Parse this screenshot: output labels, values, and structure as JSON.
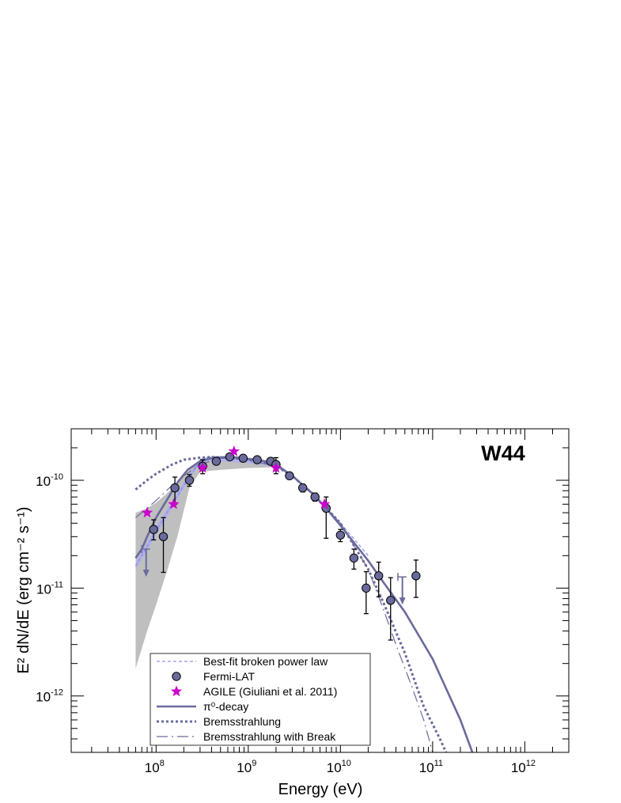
{
  "chart_data": {
    "type": "scatter",
    "title": "W44",
    "xlabel": "Energy (eV)",
    "ylabel": "E² dN/dE (erg cm⁻² s⁻¹)",
    "xscale": "log",
    "yscale": "log",
    "xlim": [
      12000000.0,
      3000000000000.0
    ],
    "ylim": [
      3e-13,
      3e-10
    ],
    "x_ticks": [
      {
        "value": 100000000.0,
        "base": "10",
        "exp": "8"
      },
      {
        "value": 1000000000.0,
        "base": "10",
        "exp": "9"
      },
      {
        "value": 10000000000.0,
        "base": "10",
        "exp": "10"
      },
      {
        "value": 100000000000.0,
        "base": "10",
        "exp": "11"
      },
      {
        "value": 1000000000000.0,
        "base": "10",
        "exp": "12"
      }
    ],
    "y_ticks": [
      {
        "value": 1e-10,
        "base": "10",
        "exp": "-10"
      },
      {
        "value": 1e-11,
        "base": "10",
        "exp": "-11"
      },
      {
        "value": 1e-12,
        "base": "10",
        "exp": "-12"
      }
    ],
    "legend_position": "bottom-left",
    "colors": {
      "fermi": "#6a6a9c",
      "agile": "#cc00cc",
      "model": "#6a6a9c",
      "bpl": "#8f8fef",
      "band": "#b4b4b4",
      "bpl_band": "#aaaaf5"
    },
    "series": [
      {
        "name": "Best-fit broken power law",
        "kind": "line",
        "x": [
          60000000.0,
          100000000.0,
          200000000.0,
          300000000.0,
          400000000.0,
          700000000.0,
          1200000000.0,
          2000000000.0,
          3000000000.0,
          5000000000.0,
          10000000000.0,
          20000000000.0
        ],
        "y": [
          1.6e-11,
          3.4e-11,
          9e-11,
          1.5e-10,
          1.6e-10,
          1.58e-10,
          1.52e-10,
          1.4e-10,
          1.1e-10,
          7.5e-11,
          4e-11,
          2e-11
        ],
        "band_lower": [
          1.5e-11,
          3.1e-11,
          8.5e-11,
          1.45e-10,
          1.5e-10,
          1.48e-10,
          1.42e-10,
          1.33e-10
        ],
        "band_upper": [
          1.7e-11,
          3.7e-11,
          9.6e-11,
          1.58e-10,
          1.68e-10,
          1.66e-10,
          1.6e-10,
          1.48e-10
        ]
      },
      {
        "name": "Fermi-LAT",
        "kind": "points",
        "x": [
          94000000.0,
          120000000.0,
          160000000.0,
          230000000.0,
          320000000.0,
          450000000.0,
          630000000.0,
          880000000.0,
          1250000000.0,
          1750000000.0,
          2000000000.0,
          2800000000.0,
          3900000000.0,
          5300000000.0,
          7000000000.0,
          10000000000.0,
          14000000000.0,
          19000000000.0,
          26000000000.0,
          35000000000.0,
          66000000000.0
        ],
        "y": [
          3.5e-11,
          3e-11,
          8.5e-11,
          1e-10,
          1.35e-10,
          1.5e-10,
          1.65e-10,
          1.6e-10,
          1.55e-10,
          1.5e-10,
          1.4e-10,
          1.1e-10,
          8.5e-11,
          7e-11,
          5.5e-11,
          3.1e-11,
          1.9e-11,
          1e-11,
          1.3e-11,
          7.7e-12,
          1.3e-11
        ],
        "y_low": [
          2.8e-11,
          1.4e-11,
          6e-11,
          8.8e-11,
          1.15e-10,
          1.4e-10,
          1.55e-10,
          1.52e-10,
          1.48e-10,
          1.42e-10,
          1.15e-10,
          1.02e-10,
          7.8e-11,
          6.4e-11,
          2.9e-11,
          2.7e-11,
          1.5e-11,
          5.8e-12,
          8.3e-12,
          3.3e-12,
          8.2e-12
        ],
        "y_high": [
          4.3e-11,
          4.5e-11,
          1.07e-10,
          1.13e-10,
          1.55e-10,
          1.6e-10,
          1.75e-10,
          1.68e-10,
          1.62e-10,
          1.58e-10,
          1.62e-10,
          1.18e-10,
          9.2e-11,
          7.6e-11,
          7e-11,
          3.5e-11,
          2.3e-11,
          1.42e-11,
          1.74e-11,
          1.25e-11,
          1.82e-11
        ]
      },
      {
        "name": "AGILE (Giuliani et al. 2011)",
        "kind": "stars",
        "x": [
          80000000.0,
          155000000.0,
          320000000.0,
          700000000.0,
          2000000000.0,
          6700000000.0
        ],
        "y": [
          5e-11,
          6e-11,
          1.3e-10,
          1.85e-10,
          1.3e-10,
          6e-11
        ]
      },
      {
        "name": "π⁰-decay",
        "kind": "line",
        "x": [
          60000000.0,
          70000000.0,
          80000000.0,
          100000000.0,
          130000000.0,
          170000000.0,
          220000000.0,
          300000000.0,
          400000000.0,
          600000000.0,
          800000000.0,
          1000000000.0,
          1500000000.0,
          2000000000.0,
          3000000000.0,
          5000000000.0,
          7000000000.0,
          10000000000.0,
          20000000000.0,
          30000000000.0,
          50000000000.0,
          100000000000.0,
          200000000000.0,
          270000000000.0
        ],
        "y": [
          1.9e-11,
          2.3e-11,
          3e-11,
          4.5e-11,
          6.5e-11,
          9.5e-11,
          1.25e-10,
          1.5e-10,
          1.6e-10,
          1.65e-10,
          1.62e-10,
          1.58e-10,
          1.5e-10,
          1.4e-10,
          1.1e-10,
          7.5e-11,
          5.5e-11,
          3.8e-11,
          1.8e-11,
          1.1e-11,
          6e-12,
          2.2e-12,
          6e-13,
          3e-13
        ]
      },
      {
        "name": "Bremsstrahlung",
        "kind": "line",
        "x": [
          60000000.0,
          80000000.0,
          100000000.0,
          150000000.0,
          200000000.0,
          300000000.0,
          400000000.0,
          600000000.0,
          1000000000.0,
          1500000000.0,
          2000000000.0,
          3000000000.0,
          5000000000.0,
          10000000000.0,
          20000000000.0,
          30000000000.0,
          50000000000.0,
          80000000000.0,
          120000000000.0,
          140000000000.0
        ],
        "y": [
          8.2e-11,
          1e-10,
          1.15e-10,
          1.4e-10,
          1.55e-10,
          1.62e-10,
          1.64e-10,
          1.62e-10,
          1.55e-10,
          1.45e-10,
          1.35e-10,
          1.1e-10,
          7.5e-11,
          4e-11,
          1.5e-11,
          7e-12,
          2.5e-12,
          8e-13,
          4e-13,
          3e-13
        ]
      },
      {
        "name": "Bremsstrahlung with Break",
        "kind": "line",
        "x": [
          60000000.0,
          80000000.0,
          100000000.0,
          150000000.0,
          200000000.0,
          300000000.0,
          500000000.0,
          1000000000.0,
          2000000000.0,
          3000000000.0,
          5000000000.0,
          10000000000.0,
          20000000000.0,
          30000000000.0,
          40000000000.0,
          60000000000.0,
          80000000000.0,
          100000000000.0
        ],
        "y": [
          4.5e-11,
          5.5e-11,
          6.5e-11,
          9e-11,
          1.1e-10,
          1.4e-10,
          1.6e-10,
          1.55e-10,
          1.35e-10,
          1.1e-10,
          7.5e-11,
          4e-11,
          1.5e-11,
          6e-12,
          3e-12,
          1.2e-12,
          6e-13,
          3e-13
        ]
      }
    ],
    "upper_limits": [
      {
        "x": 78000000.0,
        "y": 2.3e-11,
        "xerr_low": 70000000.0,
        "xerr_high": 86000000.0
      },
      {
        "x": 47000000000.0,
        "y": 1.27e-11,
        "xerr_low": 42000000000.0,
        "xerr_high": 52000000000.0
      }
    ],
    "uncertainty_band": {
      "x": [
        60000000.0,
        80000000.0,
        100000000.0,
        130000000.0,
        170000000.0,
        230000000.0,
        300000000.0,
        500000000.0,
        1000000000.0,
        2000000000.0
      ],
      "lower": [
        1.8e-12,
        4e-12,
        7e-12,
        1.4e-11,
        3e-11,
        8.5e-11,
        1.2e-10,
        1.25e-10,
        1.3e-10,
        1.32e-10
      ],
      "upper": [
        5e-11,
        5.5e-11,
        6.2e-11,
        7.5e-11,
        9.5e-11,
        1.25e-10,
        1.5e-10,
        1.55e-10,
        1.5e-10,
        1.42e-10
      ]
    }
  }
}
